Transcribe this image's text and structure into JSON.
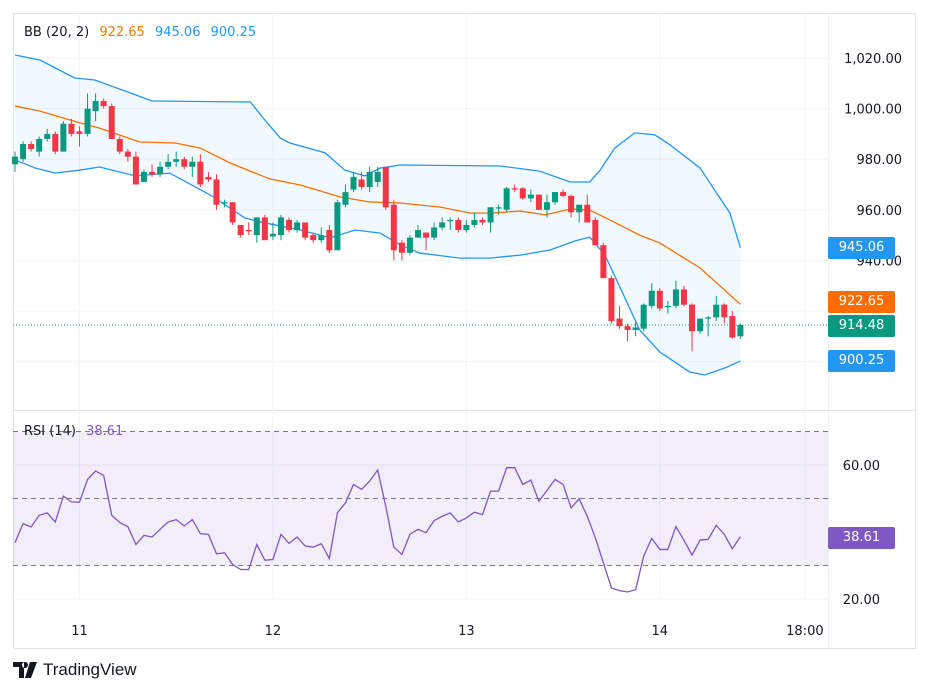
{
  "chart_data": {
    "type": "candlestick",
    "price_pane": {
      "indicator_name": "BB (20, 2)",
      "bb_basis_value": "922.65",
      "bb_upper_value": "945.06",
      "bb_lower_value": "900.25",
      "last_price": "914.48",
      "y_ticks": [
        "1,020.00",
        "1,000.00",
        "980.00",
        "960.00",
        "940.00"
      ],
      "y_tick_values": [
        1020,
        1000,
        980,
        960,
        940,
        920,
        900
      ],
      "candles_ohlc": [
        [
          978,
          983,
          975,
          981
        ],
        [
          980,
          987,
          979,
          986
        ],
        [
          986,
          987,
          983,
          984
        ],
        [
          983,
          989,
          981,
          988
        ],
        [
          988,
          992,
          987,
          990
        ],
        [
          990,
          991,
          982,
          983
        ],
        [
          983,
          995,
          983,
          994
        ],
        [
          994,
          996,
          989,
          990
        ],
        [
          991,
          993,
          985,
          990
        ],
        [
          990,
          1006,
          989,
          1000
        ],
        [
          999,
          1006,
          995,
          1003
        ],
        [
          1003,
          1004,
          1000,
          1001
        ],
        [
          1001,
          1002,
          988,
          988
        ],
        [
          988,
          989,
          982,
          983
        ],
        [
          983,
          984,
          979,
          981
        ],
        [
          981,
          983,
          970,
          970
        ],
        [
          971,
          976,
          971,
          975
        ],
        [
          975,
          978,
          973,
          974
        ],
        [
          974,
          979,
          973,
          977
        ],
        [
          977,
          982,
          976,
          979
        ],
        [
          979,
          983,
          977,
          980
        ],
        [
          980,
          981,
          976,
          977
        ],
        [
          977,
          981,
          973,
          979
        ],
        [
          979,
          982,
          969,
          970
        ],
        [
          973,
          975,
          971,
          972
        ],
        [
          972,
          974,
          960,
          962
        ],
        [
          962.5,
          964,
          961,
          963
        ],
        [
          963,
          963,
          954,
          955
        ],
        [
          954,
          954,
          949,
          950
        ],
        [
          952,
          955,
          950,
          951.5
        ],
        [
          950,
          957,
          947,
          957
        ],
        [
          957,
          958,
          948,
          948
        ],
        [
          949.5,
          955,
          948,
          950.5
        ],
        [
          950,
          958,
          948,
          957
        ],
        [
          956,
          957,
          951,
          952
        ],
        [
          952,
          956,
          951,
          955
        ],
        [
          955,
          955,
          948,
          949
        ],
        [
          950,
          951,
          947,
          948
        ],
        [
          948,
          953,
          947,
          950
        ],
        [
          952,
          954,
          943,
          944
        ],
        [
          944,
          964,
          944,
          963
        ],
        [
          962,
          970,
          961,
          967
        ],
        [
          968,
          975,
          967,
          973
        ],
        [
          972,
          975,
          968,
          969
        ],
        [
          969,
          977,
          967,
          975
        ],
        [
          971,
          977,
          969,
          975
        ],
        [
          977,
          977,
          960,
          961
        ],
        [
          962,
          964,
          940,
          944
        ],
        [
          947,
          948,
          940,
          943
        ],
        [
          943,
          950,
          942,
          949
        ],
        [
          949,
          954,
          949,
          952
        ],
        [
          951,
          951,
          944,
          949
        ],
        [
          949,
          955,
          948,
          953
        ],
        [
          953,
          957,
          952,
          955
        ],
        [
          955.5,
          957,
          952,
          956
        ],
        [
          956,
          957,
          951,
          952
        ],
        [
          952,
          956,
          951,
          954
        ],
        [
          954,
          959,
          953,
          956
        ],
        [
          956,
          957,
          954,
          955
        ],
        [
          955,
          961,
          951,
          961
        ],
        [
          960.5,
          962,
          958,
          961
        ],
        [
          960,
          969,
          959,
          968.5
        ],
        [
          968.5,
          970,
          967,
          968
        ],
        [
          968.5,
          969,
          964,
          964.5
        ],
        [
          964.5,
          968,
          963,
          966
        ],
        [
          966,
          966,
          960,
          960
        ],
        [
          960,
          966,
          957,
          963
        ],
        [
          963,
          967,
          962,
          967
        ],
        [
          967,
          968,
          965,
          965.5
        ],
        [
          965.5,
          966,
          957,
          959
        ],
        [
          959,
          962,
          955,
          962
        ],
        [
          962,
          966,
          955,
          955
        ],
        [
          956,
          957,
          946,
          946
        ],
        [
          946,
          947,
          933,
          933
        ],
        [
          933,
          934,
          915,
          916
        ],
        [
          917,
          922,
          913,
          914
        ],
        [
          914,
          915,
          908,
          912.5
        ],
        [
          912.5,
          916,
          910,
          913.5
        ],
        [
          913,
          923,
          912,
          922.5
        ],
        [
          922,
          931,
          921,
          928
        ],
        [
          928,
          929,
          920,
          921
        ],
        [
          921.5,
          924,
          919,
          922
        ],
        [
          922,
          932,
          921,
          928.5
        ],
        [
          928.5,
          930,
          922,
          922.5
        ],
        [
          922.5,
          923,
          904,
          912
        ],
        [
          912,
          917,
          911,
          917
        ],
        [
          917,
          918,
          910,
          917.5
        ],
        [
          917.5,
          926,
          916,
          922.5
        ],
        [
          922.5,
          923,
          915,
          917.5
        ],
        [
          918,
          920,
          909,
          909.5
        ],
        [
          910,
          915,
          909,
          914.48
        ]
      ],
      "bb_upper": [
        [
          0,
          1021.2
        ],
        [
          3.1,
          1019.2
        ],
        [
          7.4,
          1012.1
        ],
        [
          9.9,
          1011.3
        ],
        [
          14.3,
          1006.2
        ],
        [
          17,
          1003
        ],
        [
          29.2,
          1002.6
        ],
        [
          31,
          995.5
        ],
        [
          32.9,
          988.4
        ],
        [
          34.1,
          986.4
        ],
        [
          38.5,
          982.5
        ],
        [
          40.9,
          975.7
        ],
        [
          43.4,
          973.4
        ],
        [
          45.3,
          976.5
        ],
        [
          47.8,
          977.7
        ],
        [
          60.2,
          977.3
        ],
        [
          65.1,
          975.3
        ],
        [
          68.9,
          971
        ],
        [
          71.3,
          971
        ],
        [
          72.6,
          975.7
        ],
        [
          74.4,
          984.4
        ],
        [
          76.9,
          990.4
        ],
        [
          79.4,
          989.6
        ],
        [
          81.3,
          985.6
        ],
        [
          85,
          976.5
        ],
        [
          88.7,
          958.7
        ],
        [
          90,
          945.06
        ]
      ],
      "bb_basis": [
        [
          0,
          1001
        ],
        [
          3.1,
          999
        ],
        [
          8.1,
          994.3
        ],
        [
          10.5,
          992.3
        ],
        [
          15.5,
          986.8
        ],
        [
          19.9,
          986.4
        ],
        [
          23,
          984.4
        ],
        [
          26.7,
          978.5
        ],
        [
          31.6,
          972.2
        ],
        [
          35.4,
          969.8
        ],
        [
          40.3,
          965.1
        ],
        [
          44,
          963.1
        ],
        [
          47.8,
          962.7
        ],
        [
          52.7,
          961.1
        ],
        [
          56.5,
          958.7
        ],
        [
          58.9,
          958.7
        ],
        [
          62.7,
          959.5
        ],
        [
          65.8,
          958
        ],
        [
          68.9,
          960.3
        ],
        [
          71.3,
          959.9
        ],
        [
          73.8,
          956
        ],
        [
          77.5,
          950
        ],
        [
          80,
          946.9
        ],
        [
          85,
          937
        ],
        [
          90,
          922.65
        ]
      ],
      "bb_lower": [
        [
          0,
          979.7
        ],
        [
          2.5,
          976.5
        ],
        [
          5,
          974.5
        ],
        [
          8.1,
          975.7
        ],
        [
          10.5,
          976.9
        ],
        [
          14.9,
          973.4
        ],
        [
          19.2,
          974.5
        ],
        [
          24.2,
          965.9
        ],
        [
          28.5,
          956.8
        ],
        [
          30.4,
          955.2
        ],
        [
          35.4,
          952
        ],
        [
          39.1,
          948.9
        ],
        [
          42.2,
          952
        ],
        [
          45.3,
          950.8
        ],
        [
          47.8,
          946.1
        ],
        [
          50.2,
          942.9
        ],
        [
          55.2,
          940.9
        ],
        [
          58.9,
          940.9
        ],
        [
          62.7,
          942.1
        ],
        [
          66.4,
          944.1
        ],
        [
          69.5,
          947.7
        ],
        [
          71.3,
          949.2
        ],
        [
          73.2,
          942.1
        ],
        [
          75.1,
          929.1
        ],
        [
          77.5,
          912.5
        ],
        [
          80,
          903.8
        ],
        [
          83.7,
          895.9
        ],
        [
          85.6,
          894.7
        ],
        [
          88.1,
          897.5
        ],
        [
          90,
          900.25
        ]
      ]
    },
    "rsi_pane": {
      "indicator_name": "RSI (14)",
      "value": "38.61",
      "y_ticks": [
        "60.00",
        "20.00"
      ],
      "y_tick_values": [
        60,
        20
      ],
      "levels": [
        70,
        50,
        30
      ],
      "values": [
        36.8,
        42.5,
        41.5,
        45,
        45.7,
        43,
        50.7,
        49,
        48.9,
        55.7,
        58.2,
        56.9,
        45,
        42.8,
        41.6,
        36.3,
        39,
        38.5,
        40.8,
        43,
        43.7,
        41.8,
        43.7,
        39.5,
        39.3,
        33.5,
        33.8,
        30.3,
        28.8,
        28.8,
        36.3,
        31.6,
        31.8,
        39.3,
        36.6,
        38.5,
        35.8,
        35.5,
        36.5,
        32.1,
        45.7,
        48.7,
        54.2,
        52.7,
        55.2,
        58.5,
        47.7,
        35.5,
        33.3,
        39.3,
        40.8,
        39.8,
        43.4,
        44.7,
        45.7,
        43,
        44.2,
        45.9,
        45.2,
        52.2,
        52.2,
        59.2,
        59.2,
        54.2,
        55.5,
        49.2,
        52.4,
        55.7,
        54.2,
        47.2,
        49.9,
        44.7,
        38.3,
        30.8,
        23.3,
        22.5,
        22.1,
        22.8,
        32.8,
        38.1,
        34.8,
        34.8,
        41.6,
        37.5,
        33.1,
        37.6,
        37.8,
        42,
        39.3,
        35,
        38.61
      ]
    },
    "x_ticks": [
      {
        "label": "11",
        "index": 8
      },
      {
        "label": "12",
        "index": 32
      },
      {
        "label": "13",
        "index": 56
      },
      {
        "label": "14",
        "index": 80
      },
      {
        "label": "18:00",
        "index": 98
      }
    ],
    "colors": {
      "up": "#089981",
      "down": "#f23645",
      "bb_band": "#2196f3",
      "bb_basis": "#ff6d00",
      "rsi": "#7e57c2",
      "last_price": "#089981"
    }
  },
  "branding": {
    "logo_text": "TradingView"
  }
}
